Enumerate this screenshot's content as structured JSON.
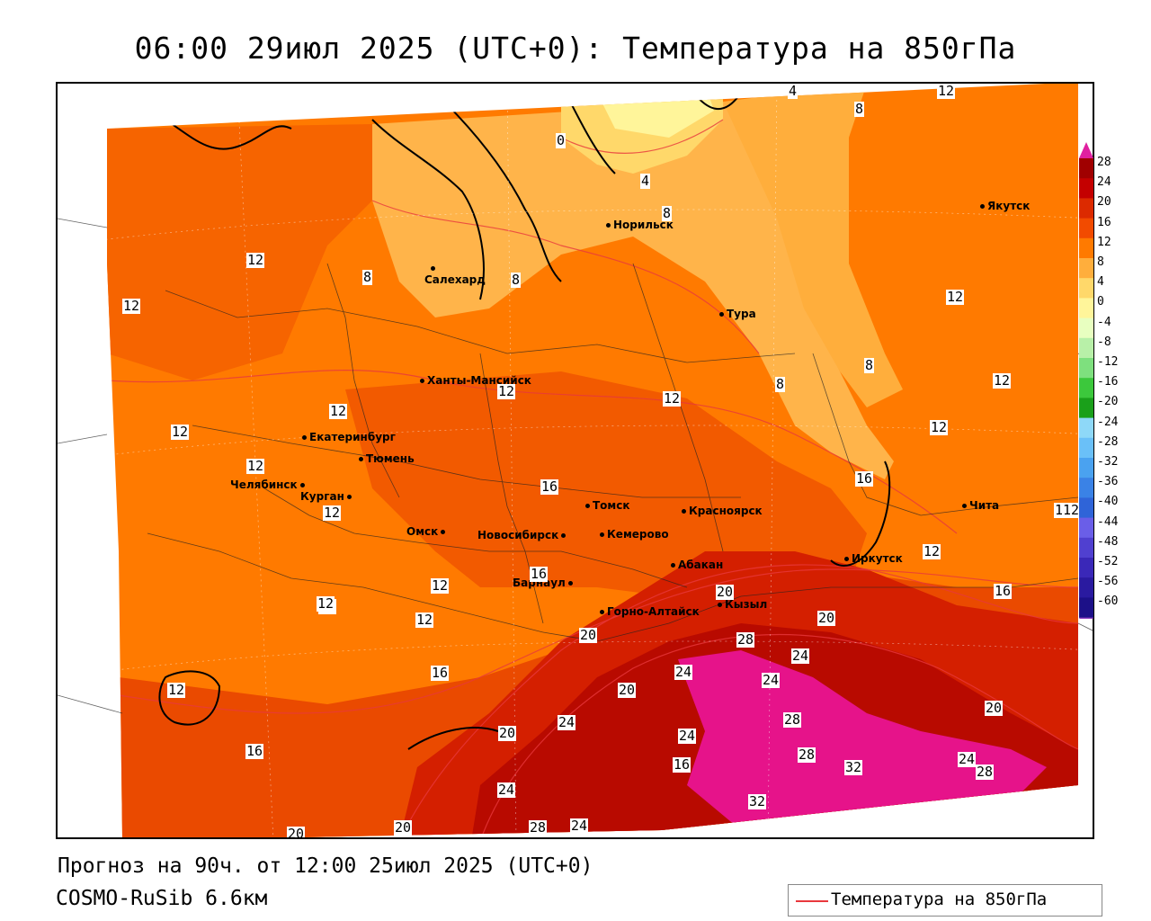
{
  "title": "06:00 29июл 2025 (UTC+0): Температура на 850гПа",
  "footer": {
    "forecast": "Прогноз на 90ч. от 12:00 25июл 2025 (UTC+0)",
    "model": "COSMO-RuSib 6.6км"
  },
  "legend": {
    "label": "Температура на 850гПа",
    "color": "#e8383d"
  },
  "colorbar": {
    "ticks": [
      "28",
      "24",
      "20",
      "16",
      "12",
      "8",
      "4",
      "0",
      "-4",
      "-8",
      "-12",
      "-16",
      "-20",
      "-24",
      "-28",
      "-32",
      "-36",
      "-40",
      "-44",
      "-48",
      "-52",
      "-56",
      "-60"
    ],
    "colors": [
      "#a00000",
      "#c40000",
      "#dc2a00",
      "#f24b00",
      "#ff7a00",
      "#ffae3c",
      "#ffd86a",
      "#fff59a",
      "#e8ffc0",
      "#b8f0a8",
      "#7ee07e",
      "#3cc83c",
      "#1aa01a",
      "#8ed8f8",
      "#6ac0f8",
      "#4aa2f0",
      "#3a82e6",
      "#2f64d8",
      "#6a5ee8",
      "#5040d0",
      "#3a28b8",
      "#2a1aa0",
      "#1c1088"
    ],
    "top_color": "#e020a0",
    "bottom_color": "#9040c0"
  },
  "cities": [
    {
      "name": "Норильск"
    },
    {
      "name": "Якутск"
    },
    {
      "name": "Салехард"
    },
    {
      "name": "Тура"
    },
    {
      "name": "Ханты-Мансийск"
    },
    {
      "name": "Екатеринбург"
    },
    {
      "name": "Тюмень"
    },
    {
      "name": "Челябинск"
    },
    {
      "name": "Курган"
    },
    {
      "name": "Омск"
    },
    {
      "name": "Новосибирск"
    },
    {
      "name": "Томск"
    },
    {
      "name": "Кемерово"
    },
    {
      "name": "Красноярск"
    },
    {
      "name": "Барнаул"
    },
    {
      "name": "Абакан"
    },
    {
      "name": "Иркутск"
    },
    {
      "name": "Чита"
    },
    {
      "name": "Кызыл"
    },
    {
      "name": "Горно-Алтайск"
    }
  ],
  "contour_labels": [
    "4",
    "12",
    "8",
    "0",
    "4",
    "8",
    "12",
    "8",
    "12",
    "8",
    "12",
    "8",
    "8",
    "12",
    "12",
    "12",
    "12",
    "12",
    "16",
    "12",
    "12",
    "16",
    "12",
    "12",
    "12",
    "16",
    "20",
    "20",
    "16",
    "12",
    "12",
    "16",
    "12",
    "16",
    "20",
    "24",
    "28",
    "24",
    "24",
    "20",
    "20",
    "24",
    "24",
    "28",
    "28",
    "32",
    "24",
    "28",
    "20",
    "32",
    "24",
    "28",
    "20",
    "24",
    "20",
    "16",
    "12",
    "12",
    "12"
  ]
}
